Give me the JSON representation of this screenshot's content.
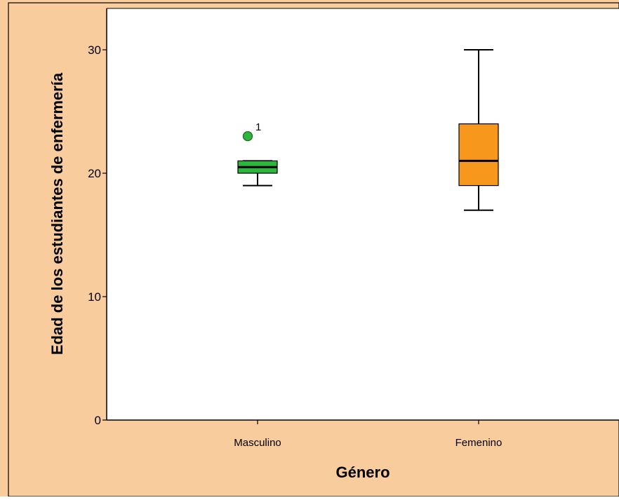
{
  "chart_data": {
    "type": "boxplot",
    "xlabel": "Género",
    "ylabel": "Edad de los estudiantes de enfermería",
    "categories": [
      "Masculino",
      "Femenino"
    ],
    "ylim": [
      0,
      33.5
    ],
    "yticks": [
      0,
      10,
      20,
      30
    ],
    "grid": false,
    "boxes": [
      {
        "category": "Masculino",
        "min": 19,
        "q1": 20,
        "median": 20.5,
        "q3": 21,
        "max": 21,
        "outliers": [
          {
            "value": 23,
            "label": "1"
          }
        ]
      },
      {
        "category": "Femenino",
        "min": 17,
        "q1": 19,
        "median": 21,
        "q3": 24,
        "max": 30,
        "outliers": []
      }
    ]
  },
  "colors": {
    "background": "#f9cc9d",
    "plot_area": "#ffffff",
    "frame": "#000000",
    "series": [
      "#2db53d",
      "#f7981d"
    ]
  }
}
